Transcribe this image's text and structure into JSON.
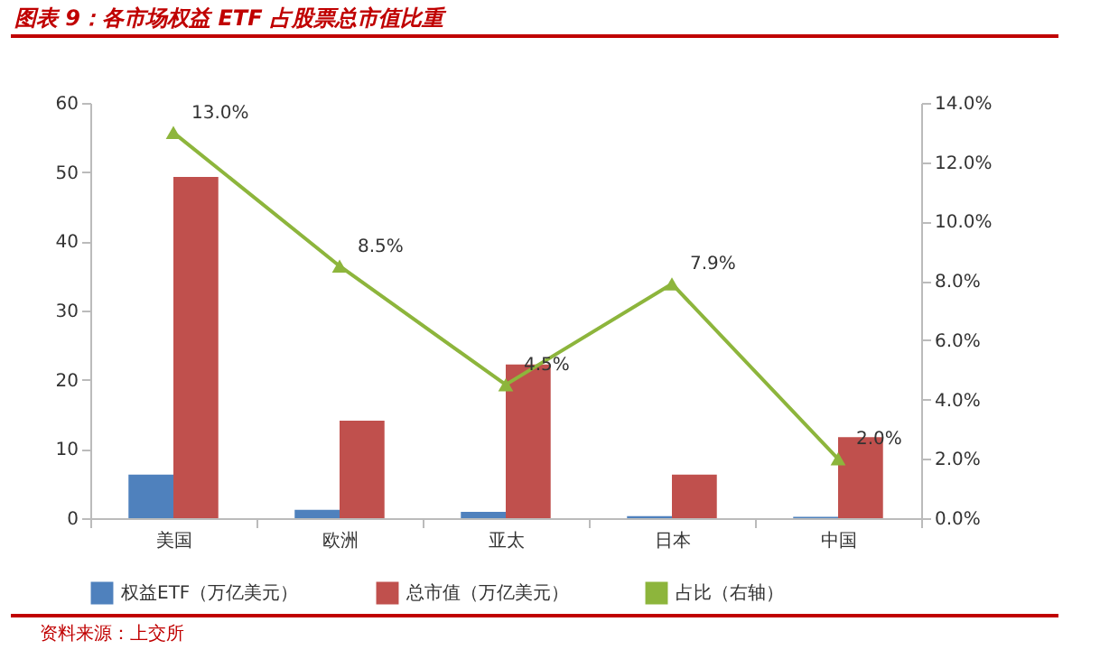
{
  "chart_data": {
    "type": "bar",
    "title": "图表 9：各市场权益 ETF 占股票总市值比重",
    "categories": [
      "美国",
      "欧洲",
      "亚太",
      "日本",
      "中国"
    ],
    "series": [
      {
        "name": "权益ETF（万亿美元）",
        "color": "#4f81bd",
        "values": [
          6.3,
          1.2,
          0.9,
          0.3,
          0.2
        ]
      },
      {
        "name": "总市值（万亿美元）",
        "color": "#c0504d",
        "values": [
          49.3,
          14.1,
          22.2,
          6.3,
          11.7
        ]
      },
      {
        "name": "占比（右轴）",
        "type": "line",
        "axis": "y2",
        "color": "#8db53c",
        "values": [
          13.0,
          8.5,
          4.5,
          7.9,
          2.0
        ],
        "value_labels": [
          "13.0%",
          "8.5%",
          "4.5%",
          "7.9%",
          "2.0%"
        ]
      }
    ],
    "ylim": [
      0,
      60
    ],
    "yticks": [
      0,
      10,
      20,
      30,
      40,
      50,
      60
    ],
    "y2lim": [
      0,
      14
    ],
    "y2ticks": [
      {
        "value": 0,
        "label": "0.0%"
      },
      {
        "value": 2,
        "label": "2.0%"
      },
      {
        "value": 4,
        "label": "4.0%"
      },
      {
        "value": 6,
        "label": "6.0%"
      },
      {
        "value": 8,
        "label": "8.0%"
      },
      {
        "value": 10,
        "label": "10.0%"
      },
      {
        "value": 12,
        "label": "12.0%"
      },
      {
        "value": 14,
        "label": "14.0%"
      }
    ],
    "grid": false,
    "legend": "bottom",
    "marker": "triangle",
    "line_style": "solid",
    "annotations": [
      "资料来源：上交所"
    ]
  }
}
